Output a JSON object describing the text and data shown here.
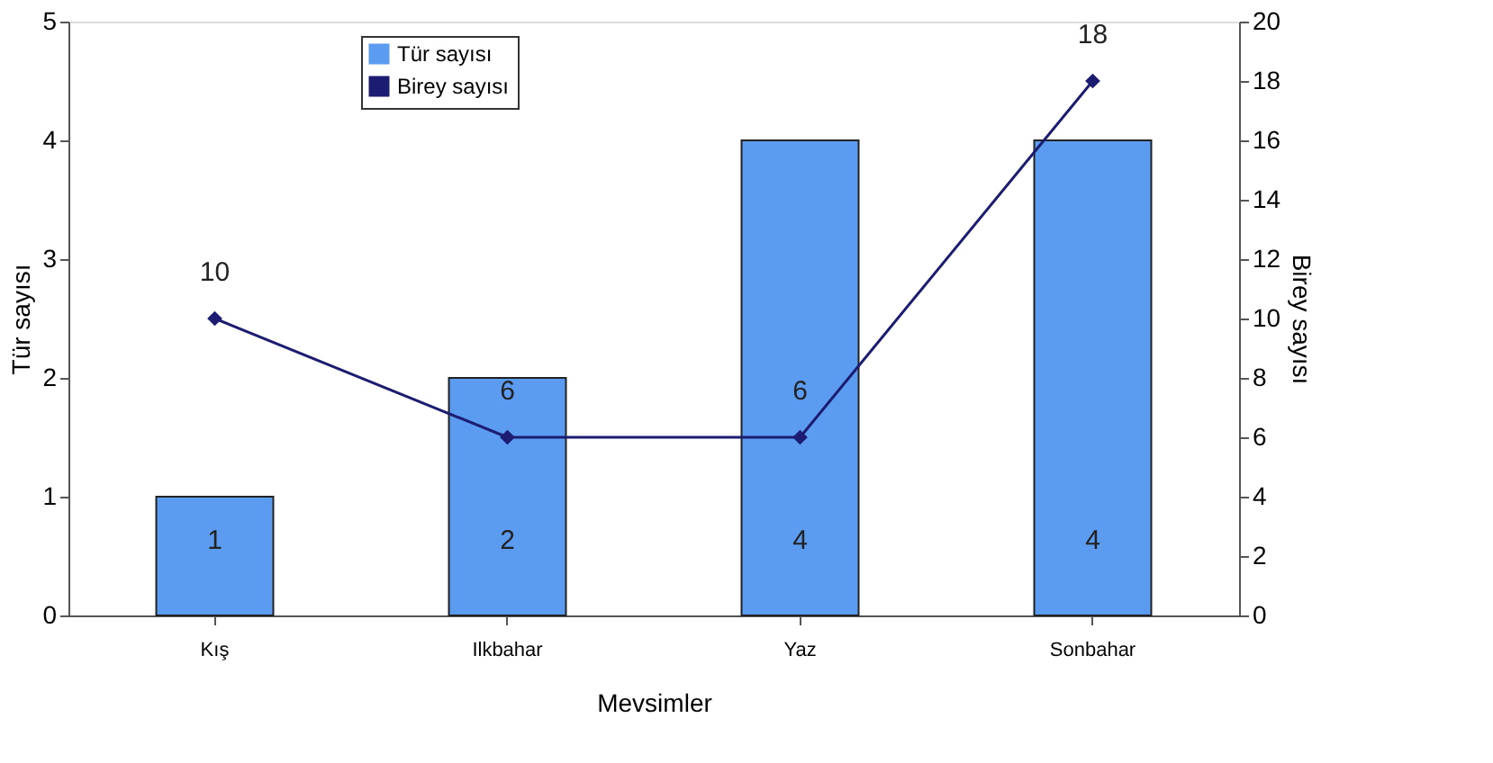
{
  "chart_data": {
    "type": "bar",
    "xlabel": "Mevsimler",
    "ylabel": "Tür sayısı",
    "y2label": "Birey sayısı",
    "categories": [
      "Kış",
      "Ilkbahar",
      "Yaz",
      "Sonbahar"
    ],
    "series": [
      {
        "name": "Tür sayısı",
        "color": "#5b9bf0",
        "values": [
          1,
          2,
          4,
          4
        ]
      },
      {
        "name": "Birey sayısı",
        "type": "line",
        "axis": "y2",
        "color": "#1c1c72",
        "values": [
          10,
          6,
          6,
          18
        ]
      }
    ],
    "ylim": [
      0,
      5
    ],
    "yticks": [
      0,
      1,
      2,
      3,
      4,
      5
    ],
    "y2lim": [
      0,
      20
    ],
    "y2ticks": [
      0,
      2,
      4,
      6,
      8,
      10,
      12,
      14,
      16,
      18,
      20
    ],
    "grid": false,
    "legend": "top",
    "marker": "diamond",
    "line_style": "solid",
    "data_labels": true
  }
}
